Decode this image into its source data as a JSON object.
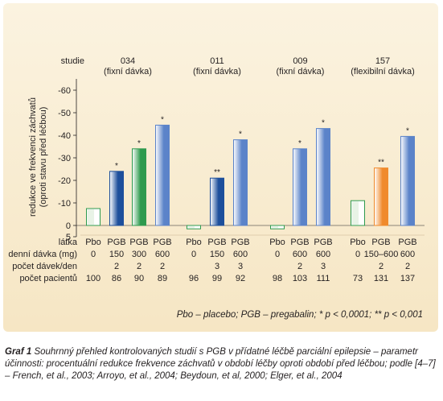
{
  "chart_data": {
    "type": "bar",
    "ylabel": "redukce ve frekvenci záchvatů (oproti stavu před léčbou)",
    "ylim": [
      5,
      -65
    ],
    "yticks": [
      "5",
      "0",
      "-10",
      "-20",
      "-30",
      "-40",
      "-50",
      "-60"
    ],
    "row_labels": {
      "studie": "studie",
      "latka": "látka",
      "davka": "denní dávka (mg)",
      "pocet_davek": "počet dávek/den",
      "pocet_pacientu": "počet pacientů"
    },
    "studies": [
      {
        "name": "034",
        "subtitle": "(fixní dávka)",
        "bars": [
          {
            "drug": "Pbo",
            "dose": "0",
            "doses_per_day": "",
            "patients": "100",
            "value": -7.5,
            "color": "#2e9a4e",
            "sig": ""
          },
          {
            "drug": "PGB",
            "dose": "150",
            "doses_per_day": "2",
            "patients": "86",
            "value": -24,
            "color": "#1d4f9c",
            "sig": "*"
          },
          {
            "drug": "PGB",
            "dose": "300",
            "doses_per_day": "2",
            "patients": "90",
            "value": -34,
            "color": "#2e9a4e",
            "sig": "*"
          },
          {
            "drug": "PGB",
            "dose": "600",
            "doses_per_day": "2",
            "patients": "89",
            "value": -44.5,
            "color": "#5b83c9",
            "sig": "*"
          }
        ]
      },
      {
        "name": "011",
        "subtitle": "(fixní dávka)",
        "bars": [
          {
            "drug": "Pbo",
            "dose": "0",
            "doses_per_day": "",
            "patients": "96",
            "value": 1.5,
            "color": "#2e9a4e",
            "sig": ""
          },
          {
            "drug": "PGB",
            "dose": "150",
            "doses_per_day": "3",
            "patients": "99",
            "value": -21,
            "color": "#1d4f9c",
            "sig": "**"
          },
          {
            "drug": "PGB",
            "dose": "600",
            "doses_per_day": "3",
            "patients": "92",
            "value": -38,
            "color": "#5b83c9",
            "sig": "*"
          }
        ]
      },
      {
        "name": "009",
        "subtitle": "(fixní dávka)",
        "bars": [
          {
            "drug": "Pbo",
            "dose": "0",
            "doses_per_day": "",
            "patients": "98",
            "value": 1.5,
            "color": "#2e9a4e",
            "sig": ""
          },
          {
            "drug": "PGB",
            "dose": "600",
            "doses_per_day": "2",
            "patients": "103",
            "value": -34,
            "color": "#5b83c9",
            "sig": "*"
          },
          {
            "drug": "PGB",
            "dose": "600",
            "doses_per_day": "3",
            "patients": "111",
            "value": -43,
            "color": "#5b83c9",
            "sig": "*"
          }
        ]
      },
      {
        "name": "157",
        "subtitle": "(flexibilní dávka)",
        "bars": [
          {
            "drug": "Pbo",
            "dose": "0",
            "doses_per_day": "",
            "patients": "73",
            "value": -11,
            "color": "#2e9a4e",
            "sig": ""
          },
          {
            "drug": "PGB",
            "dose": "150–600",
            "doses_per_day": "2",
            "patients": "131",
            "value": -25.5,
            "color": "#f08a2c",
            "sig": "**"
          },
          {
            "drug": "PGB",
            "dose": "600",
            "doses_per_day": "2",
            "patients": "137",
            "value": -39.5,
            "color": "#5b83c9",
            "sig": "*"
          }
        ]
      }
    ],
    "legend_note": "Pbo – placebo; PGB – pregabalin; * p < 0,0001; ** p < 0,001"
  },
  "caption": {
    "label": "Graf 1",
    "text": "Souhrnný přehled kontrolovaných studií s PGB v přídatné léčbě parciální epilepsie – parametr účinnosti: procentuální redukce frekvence záchvatů v období léčby oproti období před léčbou; podle [4–7] – French, et al., 2003; Arroyo, et al., 2004; Beydoun, et al, 2000; Elger, et al., 2004"
  }
}
